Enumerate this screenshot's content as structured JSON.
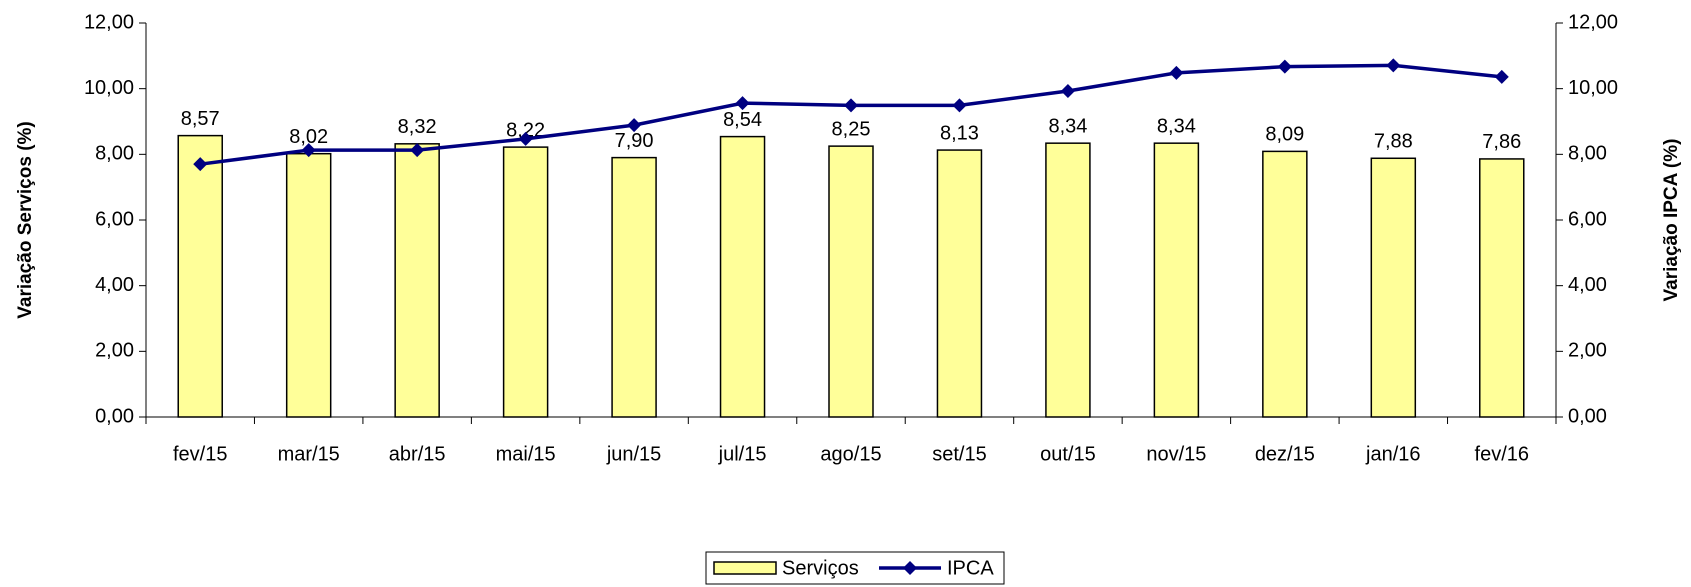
{
  "chart_data": {
    "type": "bar-line",
    "y_label": "Variação Serviços (%)",
    "y2_label": "Variação IPCA (%)",
    "categories": [
      "fev/15",
      "mar/15",
      "abr/15",
      "mai/15",
      "jun/15",
      "jul/15",
      "ago/15",
      "set/15",
      "out/15",
      "nov/15",
      "dez/15",
      "jan/16",
      "fev/16"
    ],
    "series": [
      {
        "name": "Serviços",
        "type": "bar",
        "color": "#ffff99",
        "values": [
          8.57,
          8.02,
          8.32,
          8.22,
          7.9,
          8.54,
          8.25,
          8.13,
          8.34,
          8.34,
          8.09,
          7.88,
          7.86
        ],
        "value_labels": [
          "8,57",
          "8,02",
          "8,32",
          "8,22",
          "7,90",
          "8,54",
          "8,25",
          "8,13",
          "8,34",
          "8,34",
          "8,09",
          "7,88",
          "7,86"
        ]
      },
      {
        "name": "IPCA",
        "type": "line",
        "color": "#000080",
        "axis": "y2",
        "values": [
          7.7,
          8.13,
          8.13,
          8.47,
          8.89,
          9.56,
          9.49,
          9.49,
          9.93,
          10.48,
          10.67,
          10.71,
          10.36
        ]
      }
    ],
    "ylim": [
      0,
      12
    ],
    "yticks": [
      {
        "value": 0,
        "label": "0,00"
      },
      {
        "value": 2,
        "label": "2,00"
      },
      {
        "value": 4,
        "label": "4,00"
      },
      {
        "value": 6,
        "label": "6,00"
      },
      {
        "value": 8,
        "label": "8,00"
      },
      {
        "value": 10,
        "label": "10,00"
      },
      {
        "value": 12,
        "label": "12,00"
      }
    ],
    "y2lim": [
      0,
      12
    ],
    "y2ticks": [
      {
        "value": 0,
        "label": "0,00"
      },
      {
        "value": 2,
        "label": "2,00"
      },
      {
        "value": 4,
        "label": "4,00"
      },
      {
        "value": 6,
        "label": "6,00"
      },
      {
        "value": 8,
        "label": "8,00"
      },
      {
        "value": 10,
        "label": "10,00"
      },
      {
        "value": 12,
        "label": "12,00"
      }
    ],
    "legend": "bottom"
  }
}
